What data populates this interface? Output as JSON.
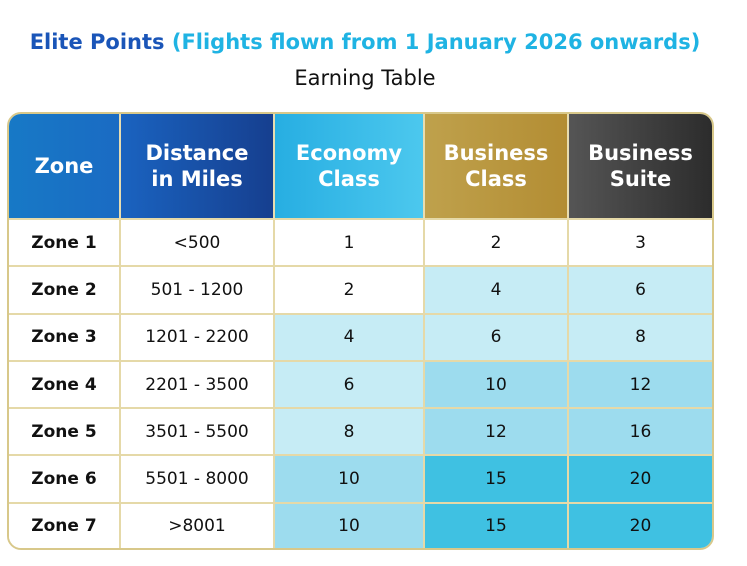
{
  "header": {
    "title_main": "Elite Points",
    "title_paren": "(Flights flown from 1 January 2026 onwards)",
    "subtitle": "Earning Table"
  },
  "table": {
    "columns": [
      {
        "line1": "Zone",
        "line2": ""
      },
      {
        "line1": "Distance",
        "line2": "in Miles"
      },
      {
        "line1": "Economy",
        "line2": "Class"
      },
      {
        "line1": "Business",
        "line2": "Class"
      },
      {
        "line1": "Business",
        "line2": "Suite"
      }
    ],
    "rows": [
      {
        "zone": "Zone 1",
        "distance": "<500",
        "economy": "1",
        "business_class": "2",
        "business_suite": "3"
      },
      {
        "zone": "Zone 2",
        "distance": "501 - 1200",
        "economy": "2",
        "business_class": "4",
        "business_suite": "6"
      },
      {
        "zone": "Zone 3",
        "distance": "1201 - 2200",
        "economy": "4",
        "business_class": "6",
        "business_suite": "8"
      },
      {
        "zone": "Zone 4",
        "distance": "2201 - 3500",
        "economy": "6",
        "business_class": "10",
        "business_suite": "12"
      },
      {
        "zone": "Zone 5",
        "distance": "3501 - 5500",
        "economy": "8",
        "business_class": "12",
        "business_suite": "16"
      },
      {
        "zone": "Zone 6",
        "distance": "5501 - 8000",
        "economy": "10",
        "business_class": "15",
        "business_suite": "20"
      },
      {
        "zone": "Zone 7",
        "distance": ">8001",
        "economy": "10",
        "business_class": "15",
        "business_suite": "20"
      }
    ]
  },
  "colors": {
    "title_main": "#1a55b8",
    "title_paren": "#1fb3e3",
    "header_zone": "#1779c6",
    "header_distance": "#163f8f",
    "header_economy": "#27aee2",
    "header_business_class": "#b38d33",
    "header_business_suite": "#2c2c2c",
    "border": "#d8c88a"
  }
}
